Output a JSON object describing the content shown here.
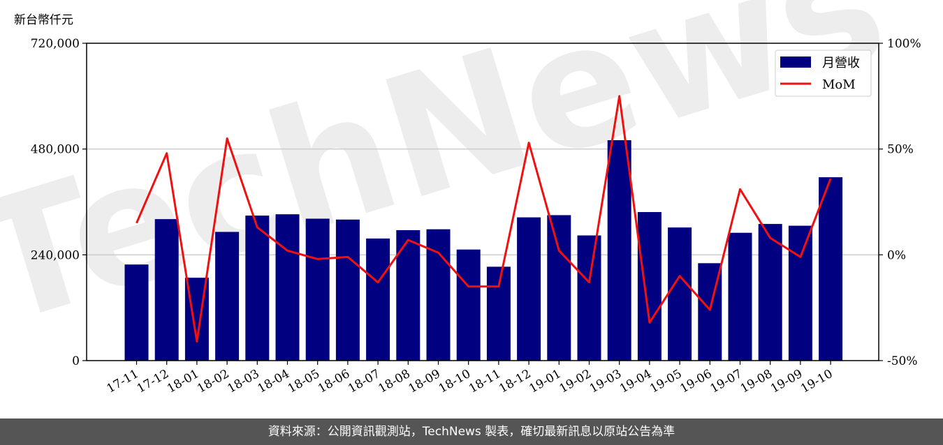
{
  "watermark": "TechNews",
  "footer": {
    "text": "資料來源：公開資訊觀測站，TechNews 製表，確切最新訊息以原站公告為準"
  },
  "chart_data": {
    "type": "bar",
    "ylabel": "新台幣仟元",
    "categories": [
      "17-11",
      "17-12",
      "18-01",
      "18-02",
      "18-03",
      "18-04",
      "18-05",
      "18-06",
      "18-07",
      "18-08",
      "18-09",
      "18-10",
      "18-11",
      "18-12",
      "19-01",
      "19-02",
      "19-03",
      "19-04",
      "19-05",
      "19-06",
      "19-07",
      "19-08",
      "19-09",
      "19-10"
    ],
    "series": [
      {
        "name": "月營收",
        "type": "bar",
        "axis": "left",
        "color": "#000080",
        "values": [
          218000,
          321000,
          188000,
          292000,
          329000,
          332000,
          322000,
          320000,
          277000,
          296000,
          298000,
          252000,
          213000,
          325000,
          330000,
          284000,
          500000,
          337000,
          302000,
          221000,
          290000,
          310000,
          306000,
          416000
        ]
      },
      {
        "name": "MoM",
        "type": "line",
        "axis": "right",
        "color": "#ee1111",
        "unit": "%",
        "values": [
          15,
          48,
          -41,
          55,
          13,
          2,
          -2,
          -1,
          -13,
          7,
          1,
          -15,
          -15,
          53,
          2,
          -13,
          75,
          -32,
          -10,
          -26,
          31,
          8,
          -1,
          36
        ]
      }
    ],
    "y_left": {
      "min": 0,
      "max": 720000,
      "ticks": [
        0,
        240000,
        480000,
        720000
      ],
      "tick_labels": [
        "0",
        "240,000",
        "480,000",
        "720,000"
      ]
    },
    "y_right": {
      "min": -50,
      "max": 100,
      "ticks": [
        -50,
        0,
        50,
        100
      ],
      "tick_labels": [
        "-50%",
        "0%",
        "50%",
        "100%"
      ]
    },
    "grid": "horizontal",
    "legend": "top-right"
  }
}
